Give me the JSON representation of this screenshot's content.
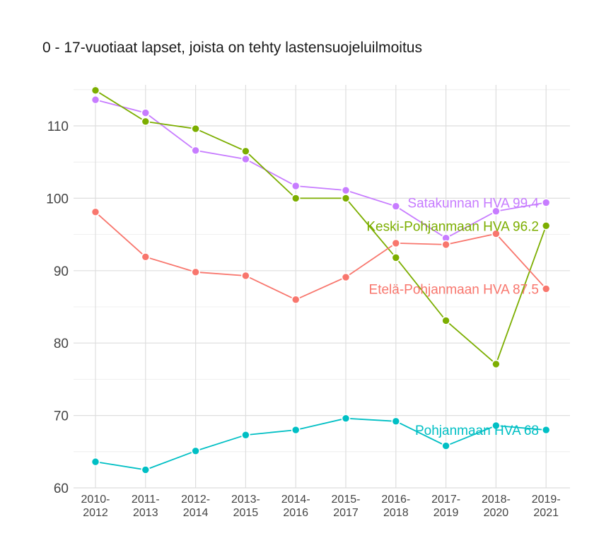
{
  "chart_data": {
    "type": "line",
    "title": "0 - 17-vuotiaat lapset, joista on tehty lastensuojeluilmoitus",
    "xlabel": "",
    "ylabel": "",
    "ylim": [
      60,
      115
    ],
    "yticks": [
      60,
      70,
      80,
      90,
      100,
      110
    ],
    "categories": [
      [
        "2010-",
        "2012"
      ],
      [
        "2011-",
        "2013"
      ],
      [
        "2012-",
        "2014"
      ],
      [
        "2013-",
        "2015"
      ],
      [
        "2014-",
        "2016"
      ],
      [
        "2015-",
        "2017"
      ],
      [
        "2016-",
        "2018"
      ],
      [
        "2017-",
        "2019"
      ],
      [
        "2018-",
        "2020"
      ],
      [
        "2019-",
        "2021"
      ]
    ],
    "series": [
      {
        "name": "Satakunnan HVA",
        "label": "Satakunnan HVA 99.4",
        "color": "#C77CFF",
        "values": [
          113.6,
          111.8,
          106.6,
          105.4,
          101.7,
          101.1,
          98.9,
          94.5,
          98.2,
          99.4
        ]
      },
      {
        "name": "Keski-Pohjanmaan HVA",
        "label": "Keski-Pohjanmaan HVA 96.2",
        "color": "#7CAE00",
        "values": [
          114.9,
          110.6,
          109.6,
          106.5,
          100.0,
          100.0,
          91.8,
          83.1,
          77.1,
          96.2
        ]
      },
      {
        "name": "Etelä-Pohjanmaan HVA",
        "label": "Etelä-Pohjanmaan HVA 87.5",
        "color": "#F8766D",
        "values": [
          98.1,
          91.9,
          89.8,
          89.3,
          86.0,
          89.1,
          93.8,
          93.6,
          95.1,
          87.5
        ]
      },
      {
        "name": "Pohjanmaan HVA",
        "label": "Pohjanmaan HVA 68",
        "color": "#00BFC4",
        "values": [
          63.6,
          62.5,
          65.1,
          67.3,
          68.0,
          69.6,
          69.2,
          65.8,
          68.6,
          68.0
        ]
      }
    ]
  }
}
